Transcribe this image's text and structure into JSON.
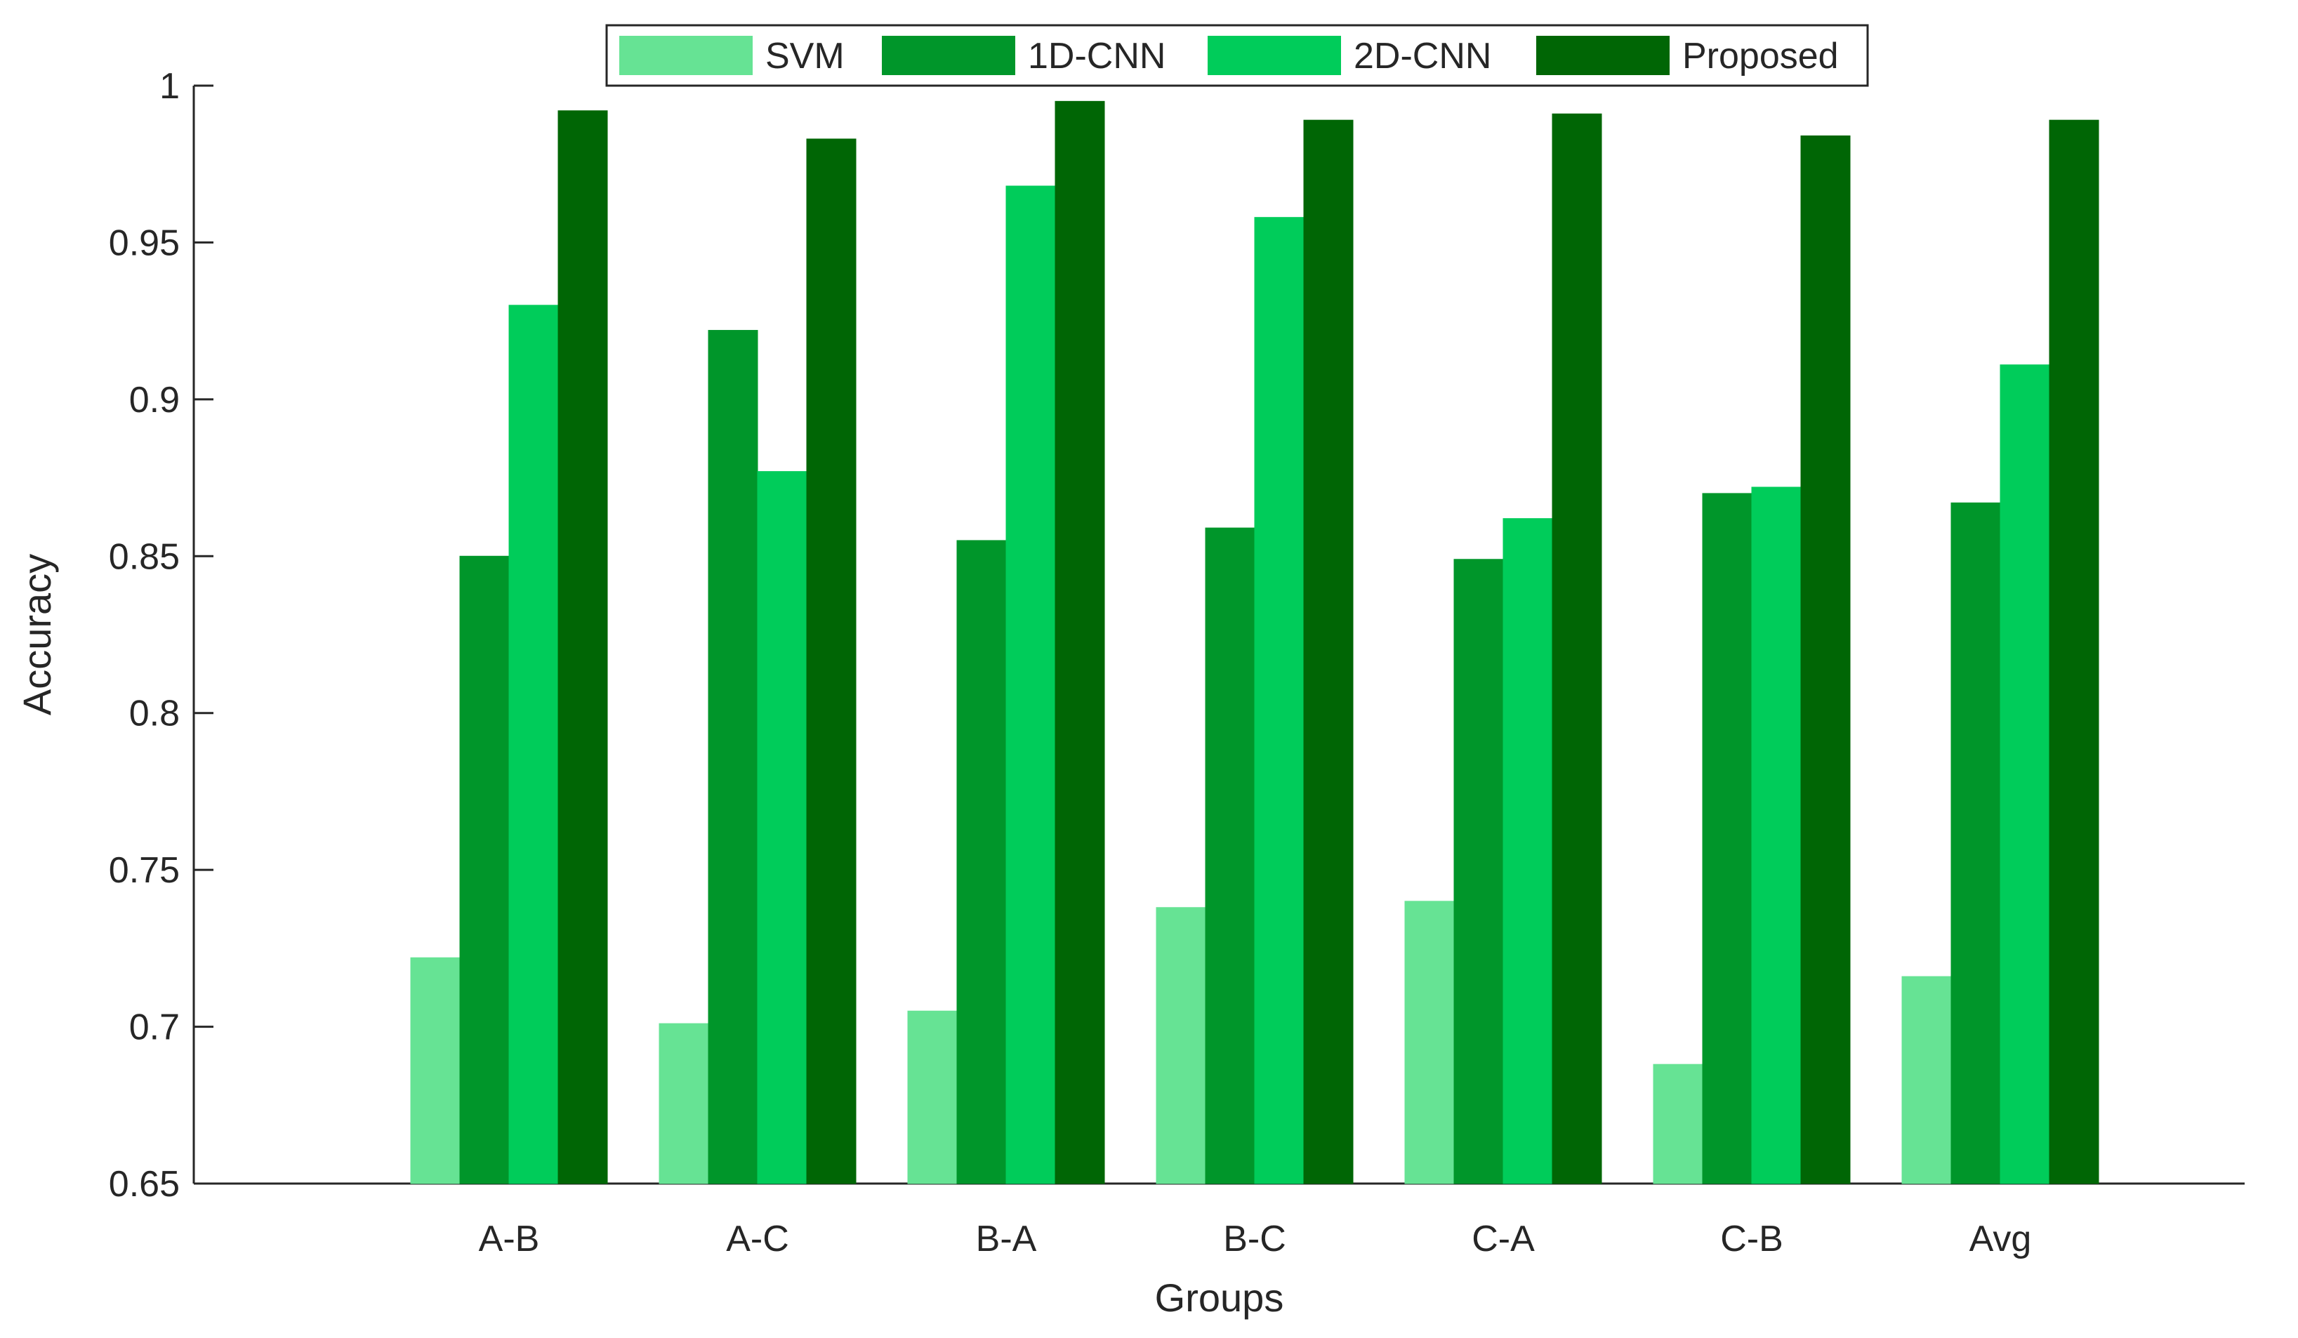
{
  "chart_data": {
    "type": "bar",
    "title": "",
    "xlabel": "Groups",
    "ylabel": "Accuracy",
    "ylim": [
      0.65,
      1.0
    ],
    "yticks": [
      "0.65",
      "0.7",
      "0.75",
      "0.8",
      "0.85",
      "0.9",
      "0.95",
      "1"
    ],
    "categories": [
      "A-B",
      "A-C",
      "B-A",
      "B-C",
      "C-A",
      "C-B",
      "Avg"
    ],
    "series": [
      {
        "name": "SVM",
        "color": "#66e394",
        "values": [
          0.722,
          0.701,
          0.705,
          0.738,
          0.74,
          0.688,
          0.716
        ]
      },
      {
        "name": "1D-CNN",
        "color": "#00962a",
        "values": [
          0.85,
          0.922,
          0.855,
          0.859,
          0.849,
          0.87,
          0.867
        ]
      },
      {
        "name": "2D-CNN",
        "color": "#00cc5a",
        "values": [
          0.93,
          0.877,
          0.968,
          0.958,
          0.862,
          0.872,
          0.911
        ]
      },
      {
        "name": "Proposed",
        "color": "#006605",
        "values": [
          0.992,
          0.983,
          0.995,
          0.989,
          0.991,
          0.984,
          0.989
        ]
      }
    ],
    "legend": "top-center",
    "grid": false
  }
}
